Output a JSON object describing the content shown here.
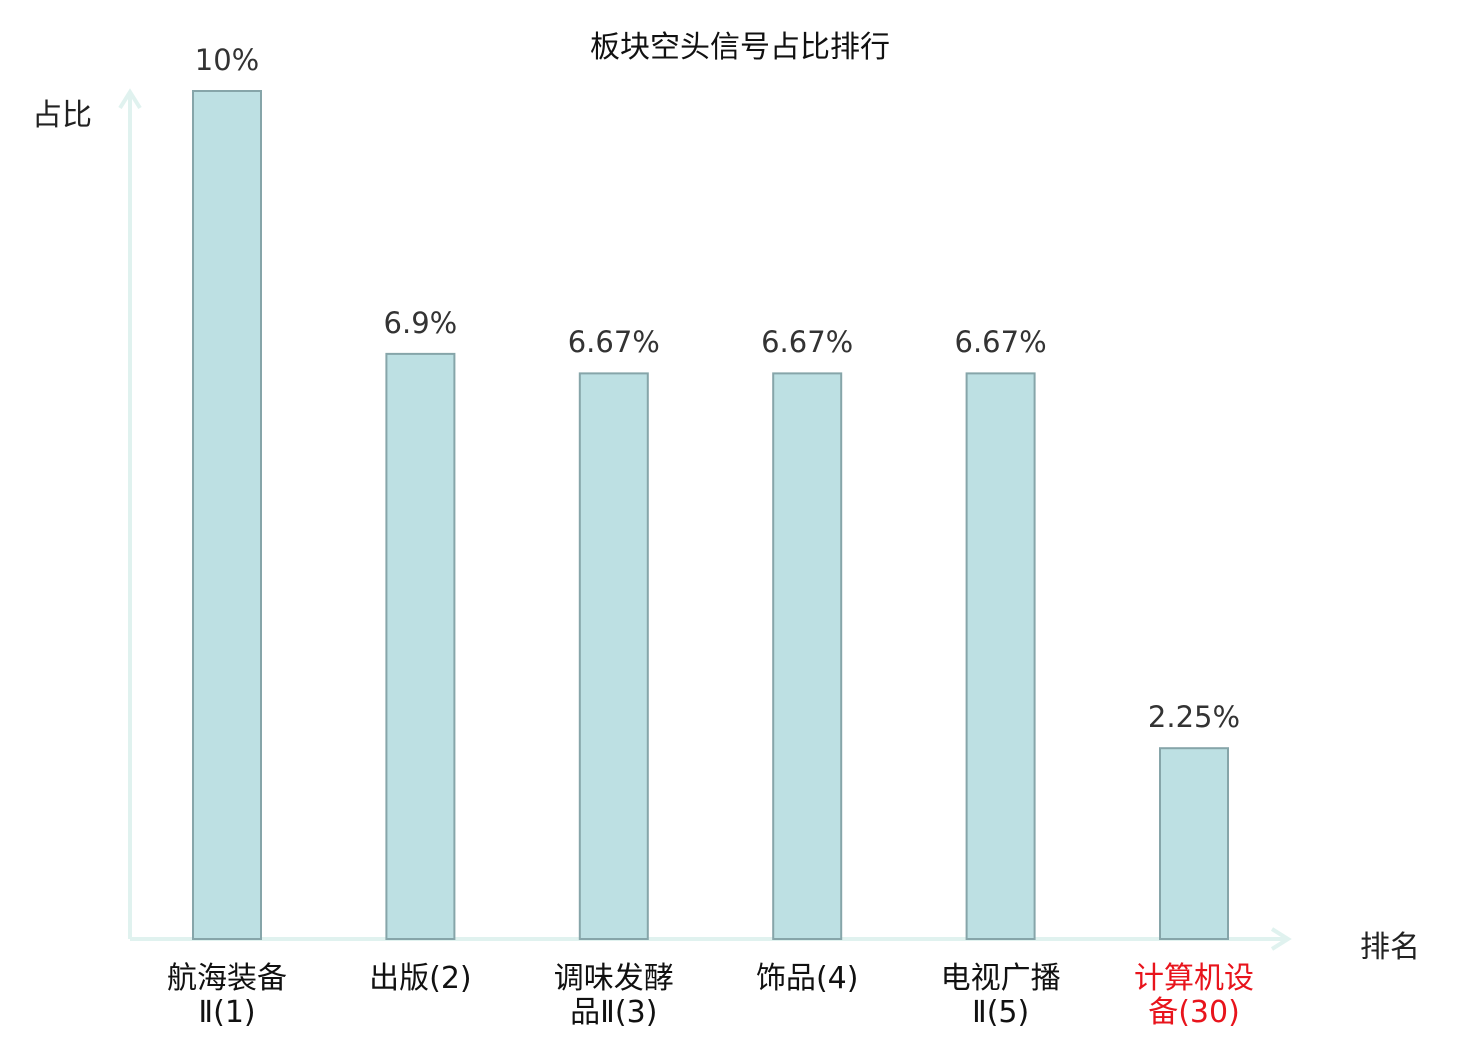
{
  "chart_data": {
    "type": "bar",
    "title": "板块空头信号占比排行",
    "ylabel": "占比",
    "xlabel": "排名",
    "ylim": [
      0,
      10
    ],
    "categories": [
      {
        "name": "航海装备",
        "rank": "Ⅱ(1)",
        "highlight": false
      },
      {
        "name": "出版",
        "rank": "(2)",
        "highlight": false
      },
      {
        "name": "调味发酵",
        "rank": "品Ⅱ(3)",
        "highlight": false
      },
      {
        "name": "饰品",
        "rank": "(4)",
        "highlight": false
      },
      {
        "name": "电视广播",
        "rank": "Ⅱ(5)",
        "highlight": false
      },
      {
        "name": "计算机设",
        "rank": "备(30)",
        "highlight": true
      }
    ],
    "values": [
      10,
      6.9,
      6.67,
      6.67,
      6.67,
      2.25
    ],
    "value_labels": [
      "10%",
      "6.9%",
      "6.67%",
      "6.67%",
      "6.67%",
      "2.25%"
    ],
    "grid": false,
    "legend": "none"
  },
  "colors": {
    "bar_fill": "#bde0e3",
    "bar_stroke": "#86a5a9",
    "axis": "#e0f2ef",
    "highlight_text": "#e8141c",
    "normal_text": "#111111"
  }
}
